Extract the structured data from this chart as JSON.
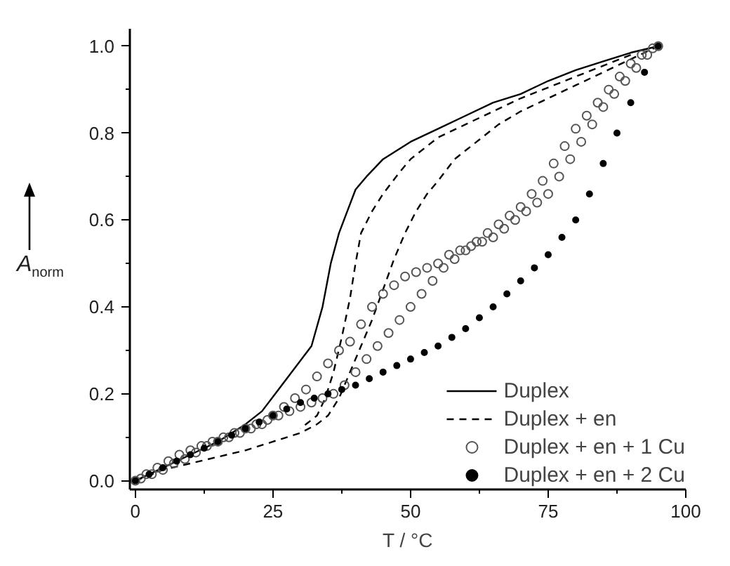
{
  "chart_data": {
    "type": "line",
    "xlabel": "T / °C",
    "ylabel": "A$_{norm}$",
    "xlim": [
      -1,
      100
    ],
    "ylim": [
      -0.02,
      1.04
    ],
    "xticks": [
      0,
      25,
      50,
      75,
      100
    ],
    "yticks": [
      {
        "value": 0,
        "label": "0.0"
      },
      0.2,
      0.4,
      0.6,
      0.8,
      {
        "value": 1,
        "label": "1.0"
      }
    ],
    "legend": "bottom right",
    "series": [
      {
        "name": "Duplex",
        "type": "line",
        "line_style": "solid",
        "color": "#000000",
        "x": [
          0,
          5,
          10,
          15,
          20,
          23,
          26,
          29,
          32,
          34,
          35.5,
          37,
          38.5,
          40,
          42,
          45,
          50,
          55,
          60,
          65,
          70,
          75,
          80,
          85,
          90,
          95
        ],
        "values": [
          0,
          0.03,
          0.06,
          0.09,
          0.13,
          0.16,
          0.21,
          0.26,
          0.31,
          0.4,
          0.5,
          0.57,
          0.62,
          0.67,
          0.7,
          0.74,
          0.78,
          0.81,
          0.84,
          0.87,
          0.89,
          0.92,
          0.945,
          0.965,
          0.985,
          1.0
        ]
      },
      {
        "name": "Duplex + en",
        "type": "line",
        "line_style": "dashed",
        "color": "#000000",
        "x": [
          0,
          5,
          10,
          15,
          20,
          25,
          30,
          33,
          35,
          37,
          39,
          41,
          43,
          45,
          47,
          49,
          51,
          53,
          55,
          58,
          62,
          66,
          70,
          75,
          80,
          85,
          90,
          95
        ],
        "values": [
          0,
          0.025,
          0.04,
          0.055,
          0.07,
          0.09,
          0.11,
          0.13,
          0.15,
          0.19,
          0.25,
          0.31,
          0.37,
          0.44,
          0.51,
          0.57,
          0.62,
          0.66,
          0.69,
          0.74,
          0.78,
          0.82,
          0.85,
          0.88,
          0.91,
          0.94,
          0.97,
          1.0
        ]
      },
      {
        "line_style": "dashed",
        "color": "#000000",
        "x": [
          90,
          85,
          80,
          75,
          70,
          65,
          60,
          55,
          50,
          48,
          45,
          43,
          41,
          40,
          39,
          37.5,
          36,
          34.5,
          33,
          30
        ],
        "values": [
          0.98,
          0.955,
          0.93,
          0.905,
          0.88,
          0.85,
          0.82,
          0.79,
          0.74,
          0.71,
          0.66,
          0.62,
          0.57,
          0.5,
          0.42,
          0.33,
          0.25,
          0.19,
          0.15,
          0.12
        ]
      },
      {
        "name": "Duplex + en + 1 Cu",
        "type": "scatter",
        "marker": "circle",
        "color": "#555555",
        "x": [
          0,
          2,
          4,
          6,
          8,
          10,
          12,
          14,
          16,
          18,
          20,
          22,
          24,
          26,
          28,
          30,
          32,
          34,
          36,
          38,
          40,
          42,
          44,
          46,
          48,
          50,
          52,
          54,
          56,
          58,
          60,
          62,
          64,
          66,
          68,
          70,
          72,
          74,
          76,
          78,
          80,
          82,
          84,
          86,
          88,
          90,
          92,
          94,
          95,
          93,
          91,
          89,
          87,
          85,
          83,
          81,
          79,
          77,
          75,
          73,
          71,
          69,
          67,
          65,
          63,
          61,
          59,
          57,
          55,
          53,
          51,
          49,
          47,
          45,
          43,
          41,
          39,
          37,
          35,
          33,
          31,
          29,
          27,
          25,
          23,
          21,
          19,
          17,
          15,
          13,
          11,
          9,
          7,
          5,
          3,
          1
        ],
        "values": [
          0,
          0.015,
          0.03,
          0.045,
          0.06,
          0.07,
          0.08,
          0.09,
          0.1,
          0.11,
          0.12,
          0.13,
          0.14,
          0.15,
          0.16,
          0.17,
          0.18,
          0.19,
          0.2,
          0.22,
          0.25,
          0.28,
          0.31,
          0.34,
          0.37,
          0.4,
          0.43,
          0.46,
          0.49,
          0.51,
          0.53,
          0.55,
          0.57,
          0.59,
          0.61,
          0.63,
          0.66,
          0.69,
          0.73,
          0.77,
          0.81,
          0.84,
          0.87,
          0.9,
          0.93,
          0.96,
          0.98,
          0.995,
          1.0,
          0.98,
          0.95,
          0.92,
          0.89,
          0.86,
          0.82,
          0.78,
          0.74,
          0.7,
          0.66,
          0.64,
          0.62,
          0.6,
          0.58,
          0.56,
          0.55,
          0.54,
          0.53,
          0.52,
          0.5,
          0.49,
          0.48,
          0.47,
          0.45,
          0.43,
          0.4,
          0.36,
          0.32,
          0.3,
          0.27,
          0.24,
          0.21,
          0.19,
          0.17,
          0.15,
          0.13,
          0.12,
          0.11,
          0.1,
          0.09,
          0.08,
          0.065,
          0.05,
          0.04,
          0.025,
          0.015,
          0.005
        ]
      },
      {
        "name": "Duplex + en + 2 Cu",
        "type": "scatter",
        "marker": "dot",
        "color": "#000000",
        "x": [
          0,
          2.5,
          5,
          7.5,
          10,
          12.5,
          15,
          17.5,
          20,
          22.5,
          25,
          27.5,
          30,
          32.5,
          35,
          37.5,
          40,
          42.5,
          45,
          47.5,
          50,
          52.5,
          55,
          57.5,
          60,
          62.5,
          65,
          67.5,
          70,
          72.5,
          75,
          77.5,
          80,
          82.5,
          85,
          87.5,
          90,
          92.5,
          95
        ],
        "values": [
          0,
          0.015,
          0.03,
          0.045,
          0.06,
          0.075,
          0.09,
          0.105,
          0.12,
          0.135,
          0.15,
          0.165,
          0.18,
          0.19,
          0.2,
          0.21,
          0.22,
          0.235,
          0.25,
          0.265,
          0.28,
          0.295,
          0.31,
          0.33,
          0.35,
          0.375,
          0.4,
          0.43,
          0.46,
          0.49,
          0.52,
          0.56,
          0.6,
          0.66,
          0.73,
          0.8,
          0.87,
          0.94,
          1.0
        ]
      }
    ]
  }
}
